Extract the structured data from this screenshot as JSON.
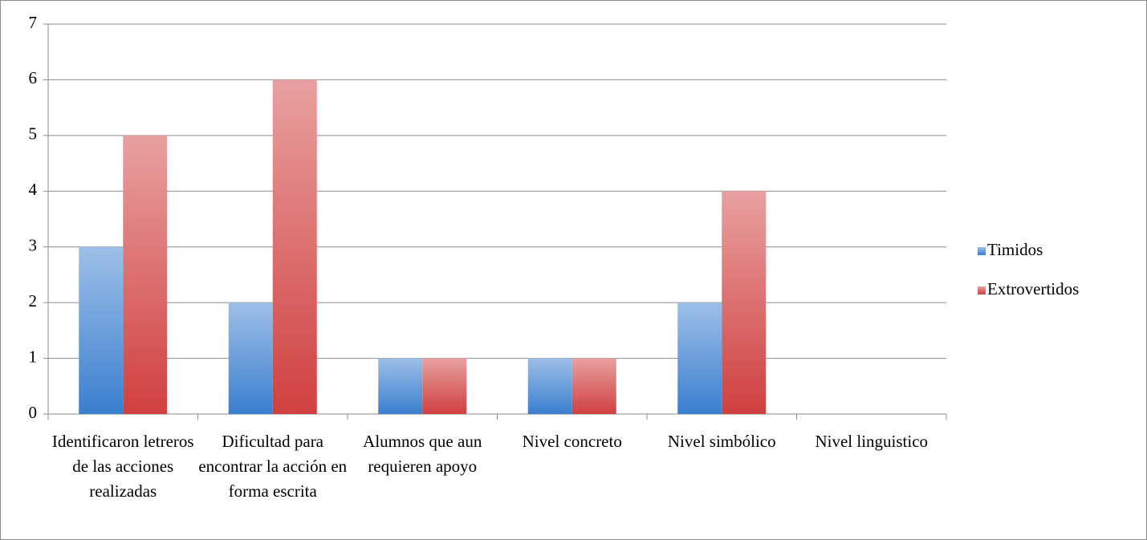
{
  "chart_data": {
    "type": "bar",
    "categories": [
      "Identificaron letreros de las acciones realizadas",
      "Dificultad para encontrar la acción en forma escrita",
      "Alumnos que aun requieren apoyo",
      "Nivel concreto",
      "Nivel simbólico",
      "Nivel linguistico"
    ],
    "series": [
      {
        "name": "Timidos",
        "color": "#3a7fcf",
        "values": [
          3,
          2,
          1,
          1,
          2,
          0
        ]
      },
      {
        "name": "Extrovertidos",
        "color": "#d04040",
        "values": [
          5,
          6,
          1,
          1,
          4,
          0
        ]
      }
    ],
    "ylim": [
      0,
      7
    ],
    "yticks": [
      0,
      1,
      2,
      3,
      4,
      5,
      6,
      7
    ],
    "grid": true,
    "legend": "right"
  }
}
